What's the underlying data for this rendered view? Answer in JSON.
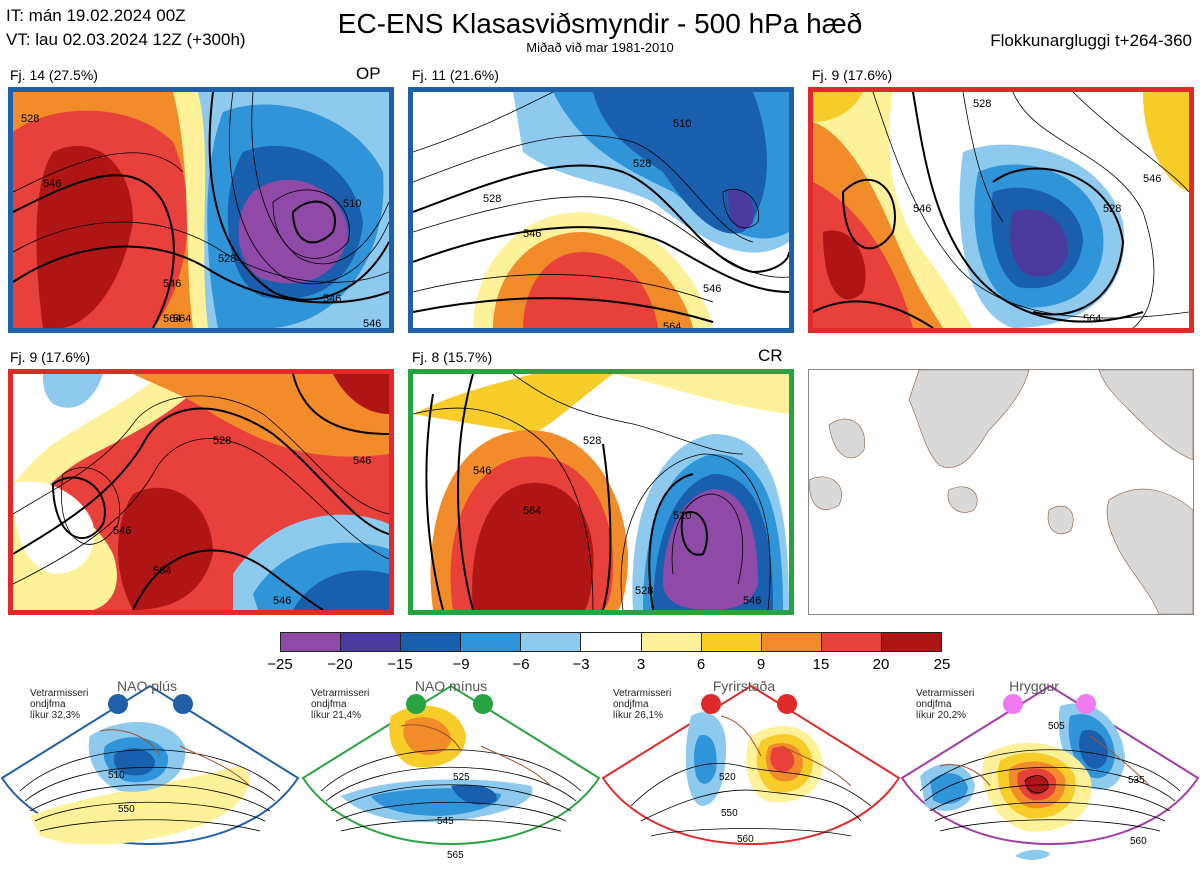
{
  "header": {
    "it_line": "IT: mán 19.02.2024 00Z",
    "vt_line": "VT: lau 02.03.2024 12Z  (+300h)",
    "title": "EC-ENS Klasasviðsmyndir - 500 hPa hæð",
    "subtitle": "Miðað við mar 1981-2010",
    "window": "Flokkunargluggi t+264-360"
  },
  "panels": [
    {
      "label": "Fj. 14 (27.5%)",
      "tag": "OP",
      "border_color": "#1f5fa8",
      "contours": [
        "528",
        "546",
        "546",
        "564",
        "510",
        "528",
        "546",
        "564",
        "546"
      ]
    },
    {
      "label": "Fj. 11 (21.6%)",
      "tag": "",
      "border_color": "#1f5fa8",
      "contours": [
        "510",
        "528",
        "528",
        "546",
        "546",
        "564"
      ]
    },
    {
      "label": "Fj. 9 (17.6%)",
      "tag": "",
      "border_color": "#e02a2a",
      "contours": [
        "528",
        "546",
        "528",
        "546",
        "564"
      ]
    },
    {
      "label": "Fj. 9 (17.6%)",
      "tag": "",
      "border_color": "#e02a2a",
      "contours": [
        "528",
        "546",
        "564",
        "546",
        "546"
      ]
    },
    {
      "label": "Fj. 8 (15.7%)",
      "tag": "CR",
      "border_color": "#27a341",
      "contours": [
        "528",
        "546",
        "564",
        "510",
        "528",
        "546"
      ]
    }
  ],
  "legend": {
    "colors": [
      "#8e4aa6",
      "#4a3aa0",
      "#1a5fae",
      "#2f94d8",
      "#8ec9ee",
      "#ffffff",
      "#fdf29a",
      "#f8cd2a",
      "#f28b2a",
      "#e8403a",
      "#b01515"
    ],
    "ticks": [
      "−25",
      "−20",
      "−15",
      "−9",
      "−6",
      "−3",
      "3",
      "6",
      "9",
      "15",
      "20",
      "25"
    ]
  },
  "regimes": [
    {
      "title": "NAO plús",
      "note": [
        "Vetrarmisseri",
        "ondjfma",
        "líkur 32,3%"
      ],
      "color": "#1f5fa8",
      "labels": [
        "510",
        "550"
      ]
    },
    {
      "title": "NAO mínus",
      "note": [
        "Vetrarmisseri",
        "ondjfma",
        "líkur 21,4%"
      ],
      "color": "#27a341",
      "labels": [
        "525",
        "545",
        "565"
      ]
    },
    {
      "title": "Fyrirstaða",
      "note": [
        "Vetrarmisseri",
        "ondjfma",
        "líkur 26,1%"
      ],
      "color": "#e02a2a",
      "labels": [
        "520",
        "550",
        "560"
      ]
    },
    {
      "title": "Hryggur",
      "note": [
        "Vetrarmisseri",
        "ondjfma",
        "líkur 20,2%"
      ],
      "color": "#a23aa8",
      "dot_color": "#f07af0",
      "labels": [
        "505",
        "535",
        "560"
      ]
    }
  ]
}
